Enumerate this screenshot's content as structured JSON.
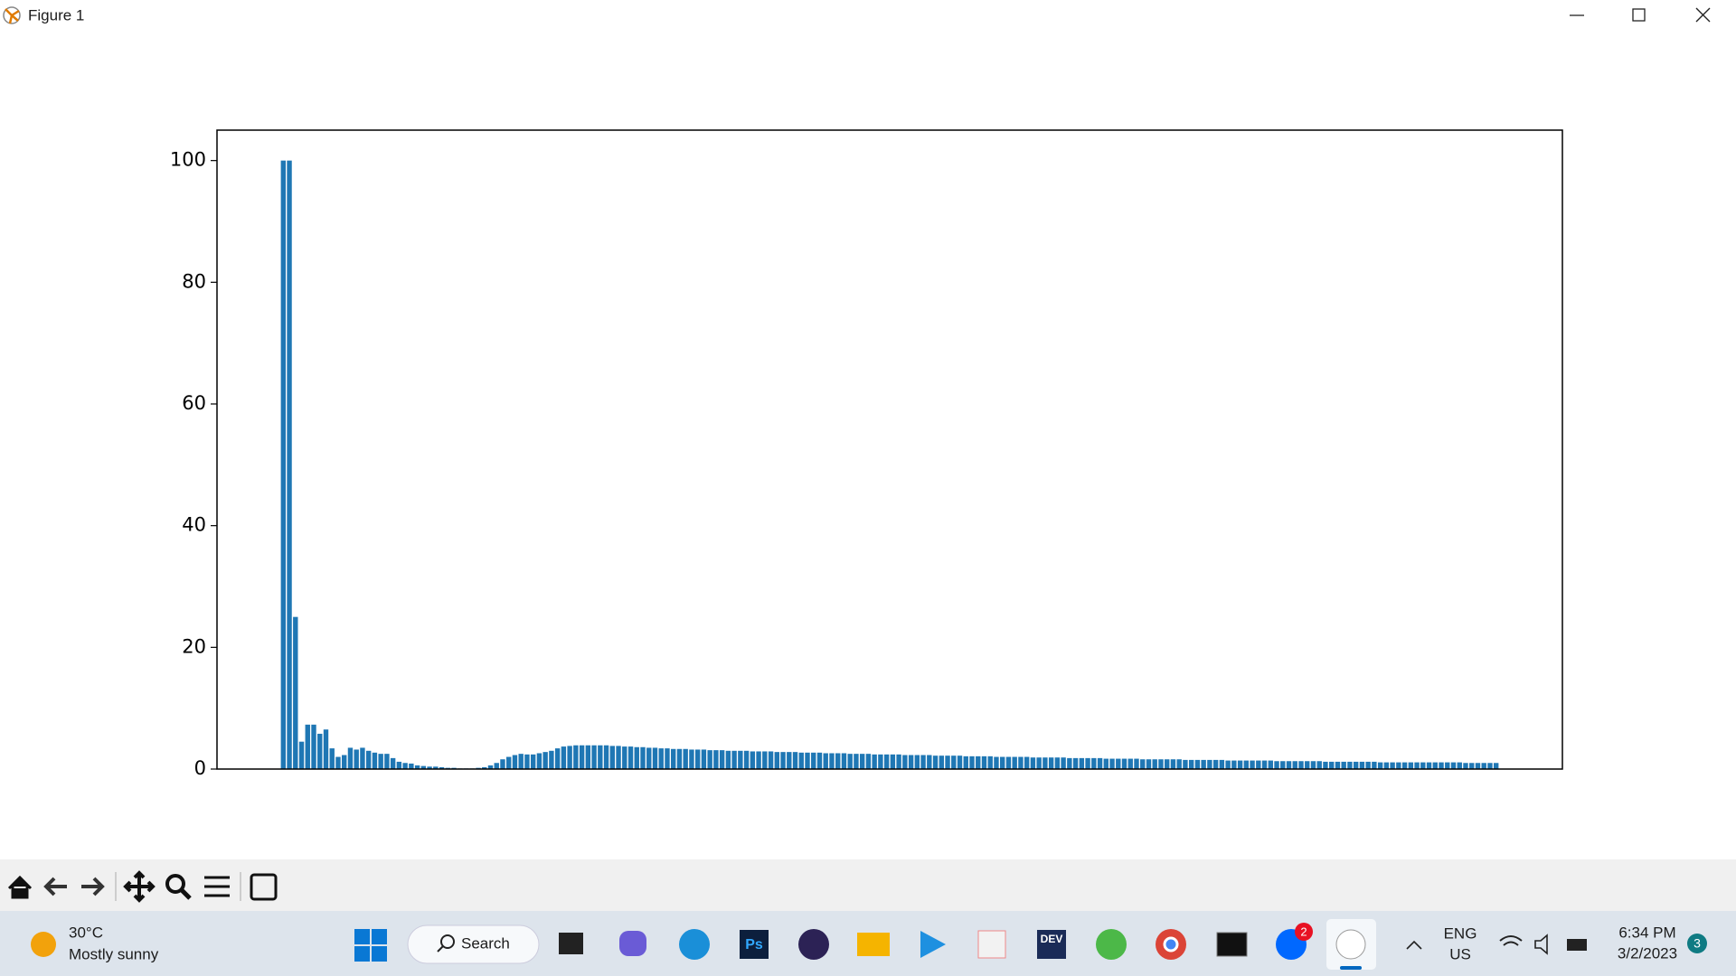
{
  "window": {
    "title": "Figure 1"
  },
  "chart_data": {
    "type": "bar",
    "color": "#1f77b4",
    "values": [
      100,
      100,
      25,
      4.5,
      7.3,
      7.3,
      5.8,
      6.5,
      3.4,
      2.0,
      2.3,
      3.5,
      3.2,
      3.5,
      3.0,
      2.7,
      2.5,
      2.5,
      1.8,
      1.2,
      1.0,
      0.9,
      0.6,
      0.5,
      0.4,
      0.4,
      0.3,
      0.2,
      0.2,
      0.1,
      0.1,
      0.1,
      0.2,
      0.3,
      0.6,
      1.0,
      1.6,
      2.0,
      2.3,
      2.5,
      2.4,
      2.4,
      2.6,
      2.8,
      3.0,
      3.4,
      3.7,
      3.8,
      3.9,
      3.9,
      3.9,
      3.9,
      3.9,
      3.9,
      3.8,
      3.8,
      3.7,
      3.7,
      3.6,
      3.6,
      3.5,
      3.5,
      3.4,
      3.4,
      3.3,
      3.3,
      3.3,
      3.2,
      3.2,
      3.2,
      3.1,
      3.1,
      3.1,
      3.0,
      3.0,
      3.0,
      3.0,
      2.9,
      2.9,
      2.9,
      2.9,
      2.8,
      2.8,
      2.8,
      2.8,
      2.7,
      2.7,
      2.7,
      2.7,
      2.6,
      2.6,
      2.6,
      2.6,
      2.5,
      2.5,
      2.5,
      2.5,
      2.4,
      2.4,
      2.4,
      2.4,
      2.4,
      2.3,
      2.3,
      2.3,
      2.3,
      2.3,
      2.2,
      2.2,
      2.2,
      2.2,
      2.2,
      2.1,
      2.1,
      2.1,
      2.1,
      2.1,
      2.0,
      2.0,
      2.0,
      2.0,
      2.0,
      2.0,
      1.9,
      1.9,
      1.9,
      1.9,
      1.9,
      1.9,
      1.8,
      1.8,
      1.8,
      1.8,
      1.8,
      1.8,
      1.7,
      1.7,
      1.7,
      1.7,
      1.7,
      1.7,
      1.6,
      1.6,
      1.6,
      1.6,
      1.6,
      1.6,
      1.6,
      1.5,
      1.5,
      1.5,
      1.5,
      1.5,
      1.5,
      1.5,
      1.4,
      1.4,
      1.4,
      1.4,
      1.4,
      1.4,
      1.4,
      1.4,
      1.3,
      1.3,
      1.3,
      1.3,
      1.3,
      1.3,
      1.3,
      1.3,
      1.2,
      1.2,
      1.2,
      1.2,
      1.2,
      1.2,
      1.2,
      1.2,
      1.2,
      1.1,
      1.1,
      1.1,
      1.1,
      1.1,
      1.1,
      1.1,
      1.1,
      1.1,
      1.1,
      1.1,
      1.1,
      1.1,
      1.1,
      1.0,
      1.0,
      1.0,
      1.0,
      1.0,
      1.0
    ],
    "ylim": [
      0,
      105
    ],
    "yticks": [
      0,
      20,
      40,
      60,
      80,
      100
    ]
  },
  "taskbar": {
    "temperature": "30°C",
    "weather": "Mostly sunny",
    "search": "Search",
    "ps": "Ps",
    "dev": "DEV",
    "zalo_badge": "2",
    "language": "ENG",
    "region": "US",
    "time": "6:34 PM",
    "date": "3/2/2023",
    "notifications": "3"
  }
}
